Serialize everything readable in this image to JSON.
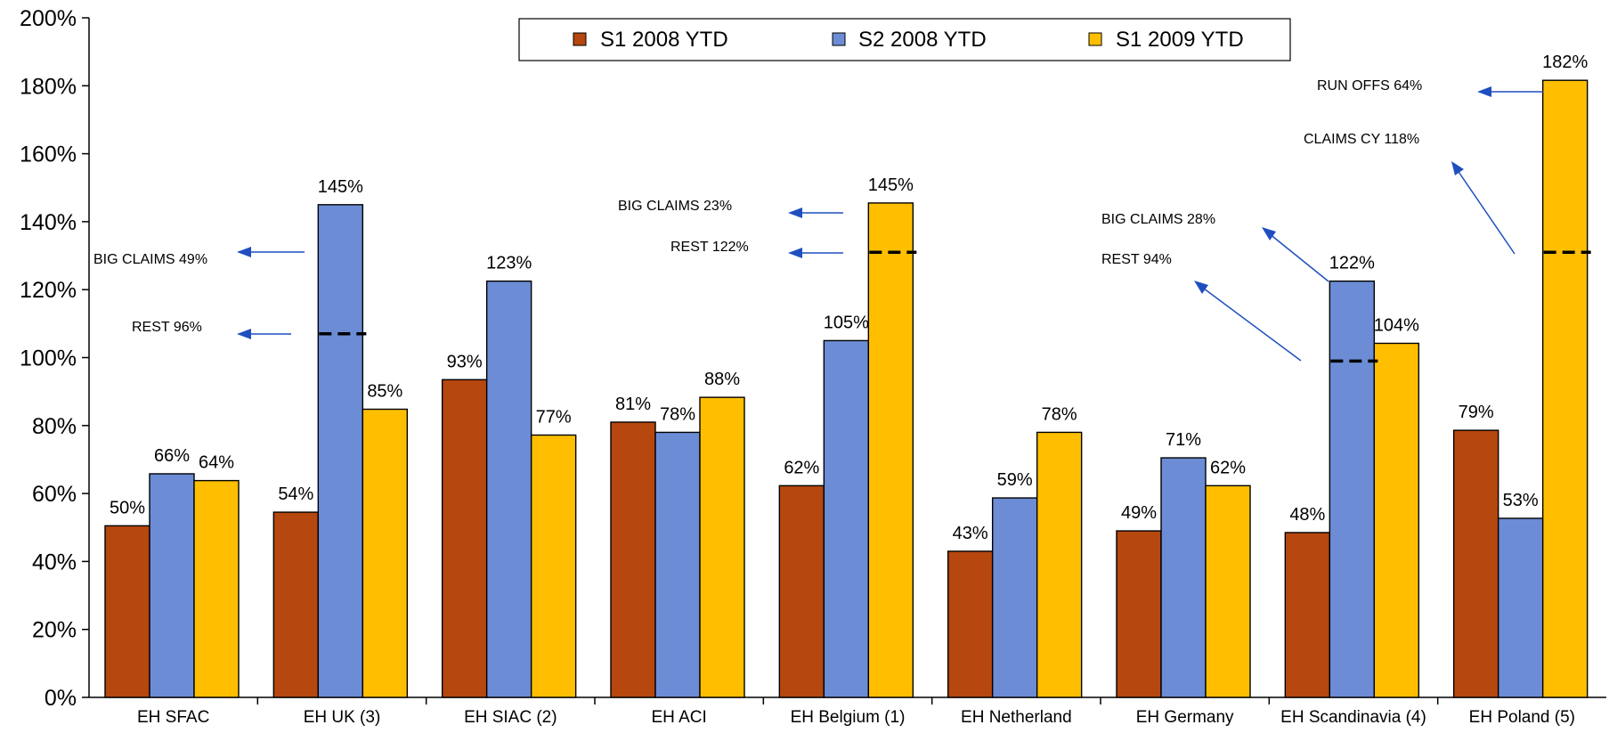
{
  "chart_data": {
    "type": "bar",
    "categories": [
      "EH SFAC",
      "EH UK (3)",
      "EH SIAC (2)",
      "EH ACI",
      "EH Belgium (1)",
      "EH Netherland",
      "EH Germany",
      "EH Scandinavia (4)",
      "EH Poland (5)"
    ],
    "series": [
      {
        "name": "S1 2008 YTD",
        "color": "#B5470F",
        "values": [
          50.5,
          54.5,
          93.5,
          81.0,
          62.3,
          43.0,
          49.0,
          48.5,
          78.6
        ],
        "labels": [
          "50%",
          "54%",
          "93%",
          "81%",
          "62%",
          "43%",
          "49%",
          "48%",
          "79%"
        ]
      },
      {
        "name": "S2 2008 YTD",
        "color": "#6C8CD5",
        "values": [
          65.8,
          145.0,
          122.5,
          78.0,
          105.0,
          58.7,
          70.5,
          122.5,
          52.7
        ],
        "labels": [
          "66%",
          "145%",
          "123%",
          "78%",
          "105%",
          "59%",
          "71%",
          "122%",
          "53%"
        ]
      },
      {
        "name": "S1 2009 YTD",
        "color": "#FFBF00",
        "values": [
          63.8,
          84.8,
          77.2,
          88.3,
          145.5,
          78.0,
          62.3,
          104.2,
          181.6
        ],
        "labels": [
          "64%",
          "85%",
          "77%",
          "88%",
          "145%",
          "78%",
          "62%",
          "104%",
          "182%"
        ]
      }
    ],
    "y_ticks": [
      "0%",
      "20%",
      "40%",
      "60%",
      "80%",
      "100%",
      "120%",
      "140%",
      "160%",
      "180%",
      "200%"
    ],
    "ylim": [
      0,
      200
    ],
    "legend_position": "top-center",
    "split_markers": [
      {
        "category_index": 1,
        "series_index": 1,
        "value": 107
      },
      {
        "category_index": 4,
        "series_index": 2,
        "value": 131
      },
      {
        "category_index": 7,
        "series_index": 1,
        "value": 99
      },
      {
        "category_index": 8,
        "series_index": 2,
        "value": 131
      }
    ],
    "annotations": [
      "BIG CLAIMS 49%",
      "REST 96%",
      "BIG CLAIMS 23%",
      "REST 122%",
      "BIG CLAIMS 28%",
      "REST 94%",
      "RUN OFFS 64%",
      "CLAIMS CY 118%"
    ],
    "arrow_color": "#1F4FBF"
  }
}
